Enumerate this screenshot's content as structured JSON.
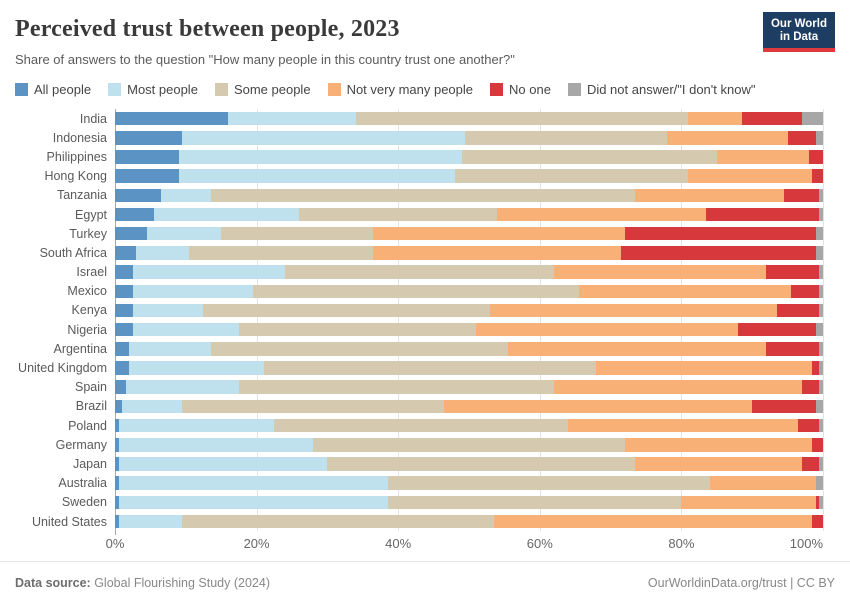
{
  "header": {
    "title": "Perceived trust between people, 2023",
    "subtitle": "Share of answers to the question \"How many people in this country trust one another?\"",
    "logo_line1": "Our World",
    "logo_line2": "in Data",
    "logo_bg": "#1d3d63",
    "logo_accent": "#e0393e"
  },
  "chart_data": {
    "type": "bar",
    "stacked": true,
    "horizontal": true,
    "title": "Perceived trust between people, 2023",
    "xlabel": "",
    "ylabel": "",
    "xlim": [
      0,
      100
    ],
    "xticks": [
      0,
      20,
      40,
      60,
      80,
      100
    ],
    "xtick_suffix": "%",
    "grid": true,
    "legend_position": "top",
    "unit": "%",
    "categories": [
      "India",
      "Indonesia",
      "Philippines",
      "Hong Kong",
      "Tanzania",
      "Egypt",
      "Turkey",
      "South Africa",
      "Israel",
      "Mexico",
      "Kenya",
      "Nigeria",
      "Argentina",
      "United Kingdom",
      "Spain",
      "Brazil",
      "Poland",
      "Germany",
      "Japan",
      "Australia",
      "Sweden",
      "United States"
    ],
    "series": [
      {
        "name": "All people",
        "color": "#5b93c4",
        "values": [
          16,
          9.5,
          9,
          9,
          6.5,
          5.5,
          4.5,
          3,
          2.5,
          2.5,
          2.5,
          2.5,
          2,
          2,
          1.5,
          1,
          0.5,
          0.5,
          0.5,
          0.5,
          0.5,
          0.5
        ]
      },
      {
        "name": "Most people",
        "color": "#bfe0ed",
        "values": [
          18,
          40,
          40,
          39,
          7,
          20.5,
          10.5,
          7.5,
          21.5,
          17,
          10,
          15,
          11.5,
          19,
          16,
          8.5,
          22,
          27.5,
          29.5,
          38,
          38,
          9
        ]
      },
      {
        "name": "Some people",
        "color": "#d5c9af",
        "values": [
          47,
          28.5,
          36,
          33,
          60,
          28,
          21.5,
          26,
          38,
          46,
          40.5,
          33.5,
          42,
          47,
          44.5,
          37,
          41.5,
          44,
          43.5,
          45.5,
          41.5,
          44
        ]
      },
      {
        "name": "Not very many people",
        "color": "#f8b077",
        "values": [
          7.5,
          17,
          13,
          17.5,
          21,
          29.5,
          35.5,
          35,
          30,
          30,
          40.5,
          37,
          36.5,
          30.5,
          35,
          43.5,
          32.5,
          26.5,
          23.5,
          15,
          19,
          45
        ]
      },
      {
        "name": "No one",
        "color": "#d7383c",
        "values": [
          8.5,
          4,
          2,
          1.5,
          5,
          16,
          27,
          27.5,
          7.5,
          4,
          6,
          11,
          7.5,
          1,
          2.5,
          9,
          3,
          1.5,
          2.5,
          0,
          0.5,
          1.5
        ]
      },
      {
        "name": "Did not answer/\"I don't know\"",
        "color": "#a7a7a7",
        "values": [
          3,
          1,
          0,
          0,
          0.5,
          0.5,
          1,
          1,
          0.5,
          0.5,
          0.5,
          1,
          0.5,
          0.5,
          0.5,
          1,
          0.5,
          0,
          0.5,
          1,
          0.5,
          0
        ]
      }
    ]
  },
  "footer": {
    "source_label": "Data source:",
    "source_value": " Global Flourishing Study (2024)",
    "credit": "OurWorldinData.org/trust | CC BY"
  }
}
